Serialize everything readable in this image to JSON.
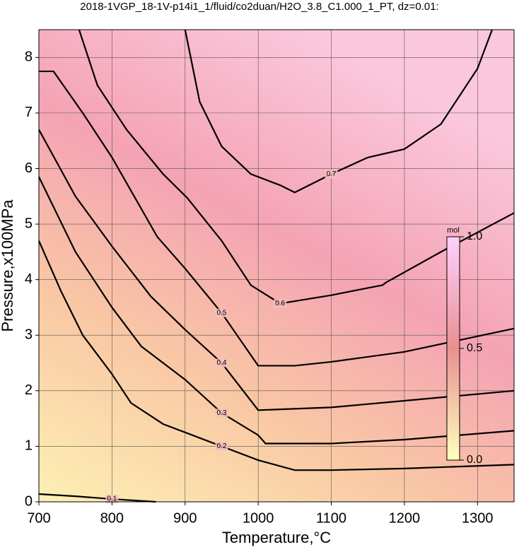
{
  "chart_data": {
    "type": "contour",
    "title": "2018-1VGP_18-1V-p14i1_1/fluid/co2duan/H2O_3.8_C1.000_1_PT, dz=0.01:",
    "x_label": "Temperature,°C",
    "y_label": "Pressure,x100MPa",
    "xlim": [
      700,
      1350
    ],
    "ylim": [
      0,
      8.5
    ],
    "xticks": [
      700,
      800,
      900,
      1000,
      1100,
      1200,
      1300
    ],
    "yticks": [
      0,
      1,
      2,
      3,
      4,
      5,
      6,
      7,
      8
    ],
    "grid": true,
    "colorbar": {
      "label": "mol",
      "ticks": [
        {
          "value": 0,
          "label": "0.0"
        },
        0.5,
        {
          "value": 1,
          "label": "1.0"
        }
      ]
    },
    "series": [
      {
        "name": "0.1",
        "color": "#000000",
        "x": [
          700,
          750,
          800,
          860
        ],
        "values": [
          0.14,
          0.1,
          0.05,
          0.0
        ]
      },
      {
        "name": "0.2",
        "color": "#000000",
        "x": [
          700,
          730,
          760,
          800,
          826,
          870,
          950,
          1000,
          1050,
          1100,
          1200,
          1350
        ],
        "values": [
          4.7,
          3.8,
          3.0,
          2.3,
          1.78,
          1.4,
          1.0,
          0.75,
          0.57,
          0.57,
          0.6,
          0.67
        ]
      },
      {
        "name": "0.3",
        "color": "#000000",
        "x": [
          700,
          750,
          800,
          840,
          900,
          950,
          1000,
          1010,
          1100,
          1200,
          1350
        ],
        "values": [
          5.85,
          4.5,
          3.5,
          2.8,
          2.2,
          1.6,
          1.2,
          1.05,
          1.05,
          1.12,
          1.28
        ]
      },
      {
        "name": "0.4",
        "color": "#000000",
        "x": [
          700,
          750,
          800,
          853,
          900,
          950,
          1000,
          1100,
          1200,
          1350
        ],
        "values": [
          6.7,
          5.5,
          4.6,
          3.7,
          3.1,
          2.5,
          1.65,
          1.7,
          1.82,
          2.0
        ]
      },
      {
        "name": "0.5",
        "color": "#000000",
        "x": [
          700,
          720,
          760,
          800,
          862,
          900,
          950,
          1000,
          1050,
          1100,
          1200,
          1350
        ],
        "values": [
          7.75,
          7.75,
          7.0,
          6.2,
          4.77,
          4.2,
          3.4,
          2.45,
          2.45,
          2.52,
          2.7,
          3.12
        ]
      },
      {
        "name": "0.6",
        "color": "#000000",
        "x": [
          755,
          780,
          820,
          870,
          903,
          950,
          990,
          1030,
          1100,
          1150,
          1170,
          1175,
          1250,
          1350
        ],
        "values": [
          8.5,
          7.5,
          6.7,
          5.9,
          5.47,
          4.7,
          3.9,
          3.57,
          3.72,
          3.85,
          3.9,
          3.95,
          4.5,
          5.2
        ]
      },
      {
        "name": "0.7",
        "color": "#000000",
        "x": [
          900,
          920,
          950,
          990,
          1030,
          1050,
          1100,
          1150,
          1200,
          1250,
          1300,
          1320
        ],
        "values": [
          8.5,
          7.2,
          6.4,
          5.9,
          5.7,
          5.57,
          5.9,
          6.2,
          6.35,
          6.8,
          7.8,
          8.5
        ]
      }
    ]
  }
}
